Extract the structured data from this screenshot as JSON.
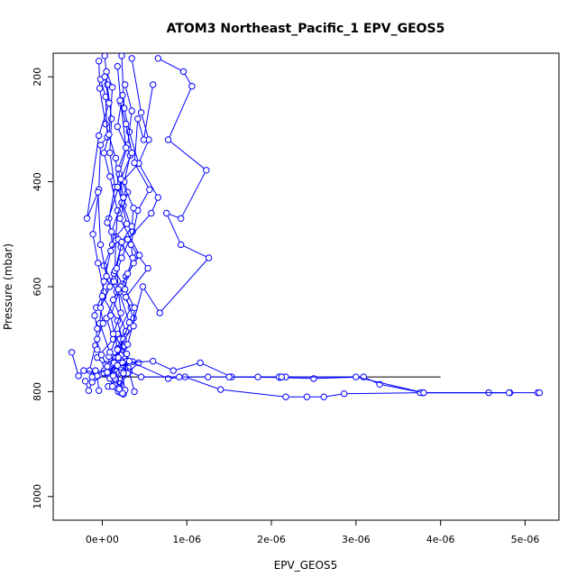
{
  "chart_data": {
    "type": "scatter",
    "title": "ATOM3 Northeast_Pacific_1 EPV_GEOS5",
    "xlabel": "EPV_GEOS5",
    "ylabel": "Pressure (mbar)",
    "xlim": [
      -5.8e-07,
      5.4e-06
    ],
    "ylim": [
      1045,
      155
    ],
    "y_reversed": true,
    "x_tick_values": [
      0,
      1e-06,
      2e-06,
      3e-06,
      4e-06,
      5e-06
    ],
    "x_tick_labels": [
      "0e+00",
      "1e-06",
      "2e-06",
      "3e-06",
      "4e-06",
      "5e-06"
    ],
    "y_tick_values": [
      200,
      400,
      600,
      800,
      1000
    ],
    "y_tick_labels": [
      "200",
      "400",
      "600",
      "800",
      "1000"
    ],
    "grid": false,
    "series_color": "#0000ff",
    "reference_line_color": "#000000",
    "reference_line": {
      "x": [
        0,
        4e-06
      ],
      "y": [
        772,
        772
      ]
    },
    "series": [
      {
        "x": [
          3e-08,
          6e-08,
          1.1e-07,
          9e-08,
          1.5e-07,
          8e-08,
          1.2e-07,
          2e-08,
          1.7e-07,
          5e-08,
          1.3e-07,
          -6e-08,
          9e-08,
          2.1e-07,
          2.5e-07
        ],
        "y": [
          160,
          215,
          280,
          345,
          410,
          470,
          520,
          560,
          610,
          660,
          700,
          735,
          760,
          785,
          805
        ]
      },
      {
        "x": [
          -4e-08,
          -3e-08,
          4e-08,
          1.6e-07,
          1.9e-07,
          6e-08,
          2.2e-07,
          1.4e-07,
          1e-08,
          1.8e-07,
          2.6e-07,
          1.1e-07,
          3.1e-07,
          7e-08,
          1.9e-07
        ],
        "y": [
          170,
          222,
          290,
          355,
          412,
          478,
          525,
          575,
          620,
          665,
          715,
          740,
          755,
          790,
          800
        ]
      },
      {
        "x": [
          2.3e-07,
          2.6e-07,
          3.2e-07,
          4.3e-07,
          1.8e-07,
          2.5e-07,
          3.6e-07,
          2.3e-07,
          1.4e-07,
          3.4e-07,
          1.8e-07,
          8e-08,
          2.4e-07,
          1.6e-07,
          2.2e-07
        ],
        "y": [
          160,
          260,
          305,
          365,
          410,
          445,
          495,
          545,
          590,
          640,
          690,
          733,
          752,
          778,
          802
        ]
      },
      {
        "x": [
          3.5e-07,
          4.6e-07,
          5.5e-07,
          4.3e-07,
          6.6e-07,
          5.8e-07,
          3e-07,
          4.2e-07,
          5.4e-07,
          2.8e-07,
          3.7e-07,
          2.1e-07,
          1.6e-07,
          8e-08,
          1.2e-07
        ],
        "y": [
          165,
          268,
          320,
          365,
          430,
          460,
          510,
          540,
          565,
          620,
          660,
          700,
          740,
          770,
          790
        ]
      },
      {
        "x": [
          -2e-08,
          4e-08,
          6e-08,
          -2e-08,
          -4e-08,
          -1.1e-07,
          -5e-08,
          2e-08,
          -7e-08,
          -9e-08,
          -6e-08,
          -8e-08,
          -1.5e-07,
          -6e-08,
          -4e-08
        ],
        "y": [
          205,
          238,
          315,
          330,
          415,
          500,
          555,
          610,
          640,
          655,
          680,
          712,
          760,
          770,
          798
        ]
      },
      {
        "x": [
          6.6e-07,
          9.6e-07,
          1.06e-06,
          7.8e-07,
          1.23e-06,
          9.3e-07,
          7.6e-07,
          9.3e-07,
          1.26e-06,
          6.8e-07,
          4.8e-07,
          3e-07,
          2.2e-07,
          2e-08,
          9e-08
        ],
        "y": [
          165,
          190,
          218,
          320,
          378,
          470,
          460,
          520,
          545,
          650,
          600,
          710,
          730,
          760,
          775
        ]
      },
      {
        "x": [
          2.7e-07,
          3.5e-07,
          3e-07,
          2e-07,
          2.3e-07,
          2.9e-07,
          1.6e-07,
          1.5e-07,
          2.4e-07,
          1.3e-07,
          2.8e-07,
          1.6e-07,
          4e-08,
          2.3e-07,
          2.7e-07
        ],
        "y": [
          215,
          265,
          330,
          385,
          440,
          480,
          505,
          570,
          595,
          625,
          685,
          735,
          748,
          760,
          797
        ]
      },
      {
        "x": [
          5e-08,
          1.2e-07,
          8e-08,
          2e-08,
          9e-08,
          1.8e-07,
          1.6e-07,
          1e-07,
          2e-08,
          0.0,
          -3e-08,
          9e-08,
          2.7e-07,
          3.2e-07,
          3.8e-07
        ],
        "y": [
          190,
          220,
          310,
          345,
          390,
          455,
          512,
          532,
          590,
          618,
          670,
          725,
          745,
          762,
          800
        ]
      },
      {
        "x": [
          2.4e-07,
          1.8e-07,
          3.3e-07,
          2.6e-07,
          3e-07,
          2.1e-07,
          4.4e-07,
          2.8e-07,
          2e-07,
          3.2e-07,
          2.5e-07,
          1.9e-07,
          4.3e-07,
          3e-07,
          2e-07
        ],
        "y": [
          235,
          295,
          350,
          400,
          420,
          470,
          540,
          580,
          610,
          668,
          700,
          735,
          745,
          765,
          792
        ]
      },
      {
        "x": [
          1.8e-07,
          2.2e-07,
          2.8e-07,
          1.9e-07,
          2.5e-07,
          1.1e-07,
          1.9e-07,
          3.7e-07,
          2.2e-07,
          1e-07,
          1.8e-07,
          3.6e-07,
          2.2e-07,
          1.4e-07,
          2.4e-07
        ],
        "y": [
          180,
          250,
          335,
          375,
          430,
          495,
          510,
          555,
          600,
          655,
          718,
          743,
          753,
          768,
          803
        ]
      },
      {
        "x": [
          6e-07,
          4.9e-07,
          4.2e-07,
          3.8e-07,
          5.6e-07,
          4.2e-07,
          3.4e-07,
          3.6e-07,
          3e-07,
          2.7e-07,
          3.8e-07,
          3.7e-07,
          1.8e-07,
          1.4e-07,
          1.5e-07
        ],
        "y": [
          215,
          320,
          280,
          364,
          415,
          455,
          520,
          545,
          575,
          605,
          640,
          675,
          720,
          745,
          775
        ]
      },
      {
        "x": [
          2.1e-07,
          2.8e-07,
          3.5e-07,
          2.2e-07,
          3.7e-07,
          3.5e-07,
          2.3e-07,
          1.7e-07,
          1.9e-07,
          2.2e-07,
          1.3e-07,
          2.9e-07,
          2.9e-07,
          2.5e-07,
          2e-07
        ],
        "y": [
          245,
          290,
          345,
          395,
          450,
          485,
          515,
          565,
          605,
          650,
          690,
          728,
          742,
          765,
          795
        ]
      },
      {
        "x": [
          3e-08,
          8e-08,
          -4e-08,
          -1.8e-07,
          -5e-08,
          -2e-08,
          5e-08,
          9e-08,
          -2e-08,
          1e-08,
          -6e-08,
          -6e-08,
          -1e-08,
          6e-08,
          1.3e-07
        ],
        "y": [
          200,
          250,
          312,
          470,
          420,
          520,
          580,
          600,
          640,
          670,
          700,
          720,
          730,
          752,
          770
        ]
      },
      {
        "x": [
          -3.6e-07,
          -2.8e-07,
          -2.2e-07,
          2e-08,
          2.4e-07,
          6e-07,
          8.4e-07,
          1.16e-06,
          1.53e-06,
          2.1e-06,
          2.5e-06,
          3.09e-06,
          3.28e-06,
          3.79e-06,
          4.82e-06
        ],
        "y": [
          725,
          770,
          760,
          765,
          745,
          742,
          760,
          745,
          772,
          773,
          775,
          772,
          786,
          802,
          802
        ]
      },
      {
        "x": [
          -2e-07,
          -1.6e-07,
          -1.2e-07,
          3.2e-07,
          7.8e-07,
          9.8e-07,
          1.4e-06,
          2.17e-06,
          2.42e-06,
          2.62e-06,
          2.86e-06,
          3.76e-06,
          4.57e-06,
          5.15e-06,
          5.17e-06
        ],
        "y": [
          780,
          798,
          782,
          742,
          775,
          772,
          796,
          810,
          810,
          810,
          804,
          802,
          802,
          802,
          802
        ]
      },
      {
        "x": [
          -1.2e-07,
          -8e-08,
          6e-08,
          1.8e-07,
          4.6e-07,
          9.1e-07,
          1.25e-06,
          1.5e-06,
          1.84e-06,
          2.09e-06,
          2.17e-06,
          2.12e-06,
          3e-06,
          3.8e-06,
          4.81e-06
        ],
        "y": [
          772,
          760,
          763,
          750,
          772,
          772,
          772,
          772,
          772,
          772,
          772,
          772,
          772,
          802,
          802
        ]
      }
    ]
  }
}
